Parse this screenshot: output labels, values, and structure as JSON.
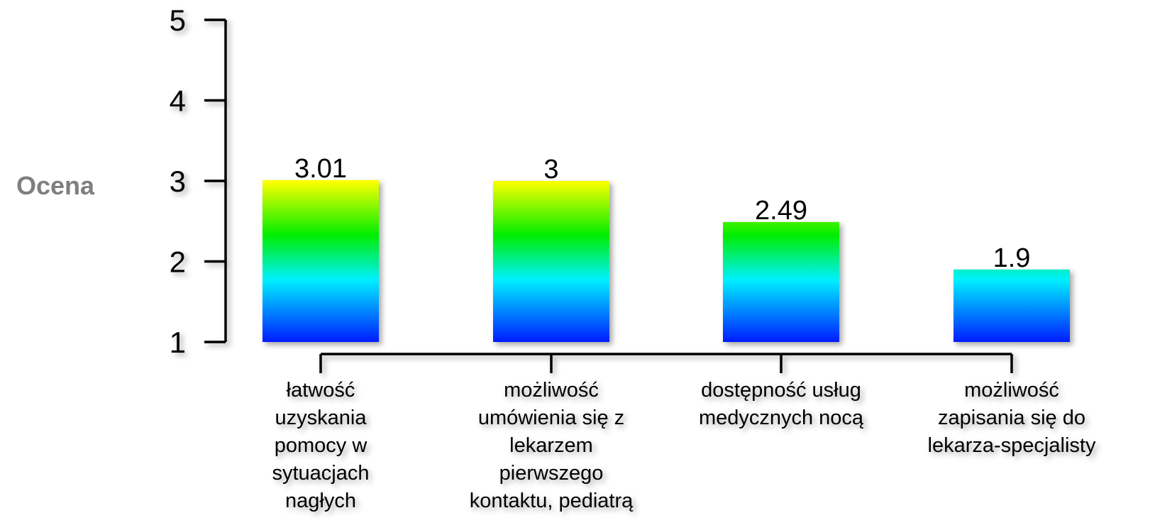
{
  "chart_data": {
    "type": "bar",
    "ylabel": "Ocena",
    "xlabel": "",
    "title": "",
    "ylim": [
      1,
      5
    ],
    "yticks": [
      "1",
      "2",
      "3",
      "4",
      "5"
    ],
    "categories": [
      [
        "łatwość",
        "uzyskania",
        "pomocy w",
        "sytuacjach",
        "nagłych"
      ],
      [
        "możliwość",
        "umówienia się z",
        "lekarzem",
        "pierwszego",
        "kontaktu, pediatrą"
      ],
      [
        "dostępność usług",
        "medycznych nocą"
      ],
      [
        "możliwość",
        "zapisania się do",
        "lekarza-specjalisty"
      ]
    ],
    "values": [
      3.01,
      3,
      2.49,
      1.9
    ],
    "value_labels": [
      "3.01",
      "3",
      "2.49",
      "1.9"
    ],
    "gradient": [
      "#ffff00",
      "#00ee00",
      "#00f0ff",
      "#0010ff"
    ],
    "grid": false,
    "legend": "none"
  }
}
